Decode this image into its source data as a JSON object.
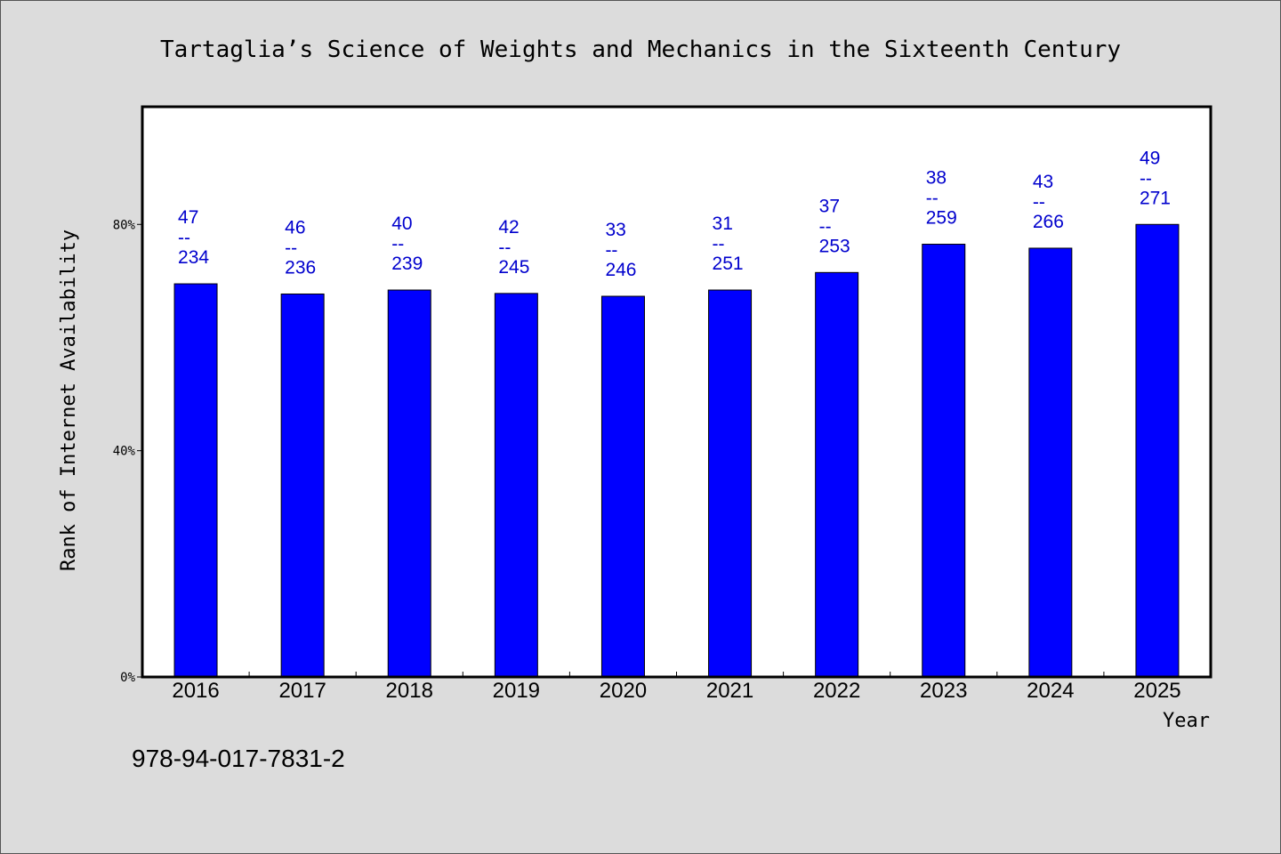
{
  "chart_data": {
    "type": "bar",
    "title": "Tartaglia’s Science of Weights and Mechanics in the Sixteenth Century",
    "xlabel": "Year",
    "ylabel": "Rank of Internet Availability",
    "categories": [
      "2016",
      "2017",
      "2018",
      "2019",
      "2020",
      "2021",
      "2022",
      "2023",
      "2024",
      "2025"
    ],
    "values": [
      69.5,
      67.7,
      68.4,
      67.8,
      67.3,
      68.4,
      71.5,
      76.5,
      75.8,
      80.0
    ],
    "data_labels": [
      {
        "top": "47",
        "sep": "--",
        "bottom": "234"
      },
      {
        "top": "46",
        "sep": "--",
        "bottom": "236"
      },
      {
        "top": "40",
        "sep": "--",
        "bottom": "239"
      },
      {
        "top": "42",
        "sep": "--",
        "bottom": "245"
      },
      {
        "top": "33",
        "sep": "--",
        "bottom": "246"
      },
      {
        "top": "31",
        "sep": "--",
        "bottom": "251"
      },
      {
        "top": "37",
        "sep": "--",
        "bottom": "253"
      },
      {
        "top": "38",
        "sep": "--",
        "bottom": "259"
      },
      {
        "top": "43",
        "sep": "--",
        "bottom": "266"
      },
      {
        "top": "49",
        "sep": "--",
        "bottom": "271"
      }
    ],
    "yticks": [
      0,
      40,
      80
    ],
    "ytick_labels": [
      "0%",
      "40%",
      "80%"
    ],
    "ylim": [
      0,
      100.8
    ],
    "grid": false,
    "legend": "none",
    "bar_color": "#0000ff",
    "label_color": "#0000cd",
    "plot_background": "#ffffff",
    "page_background": "#dcdcdc"
  },
  "footer": {
    "isbn": "978-94-017-7831-2"
  }
}
